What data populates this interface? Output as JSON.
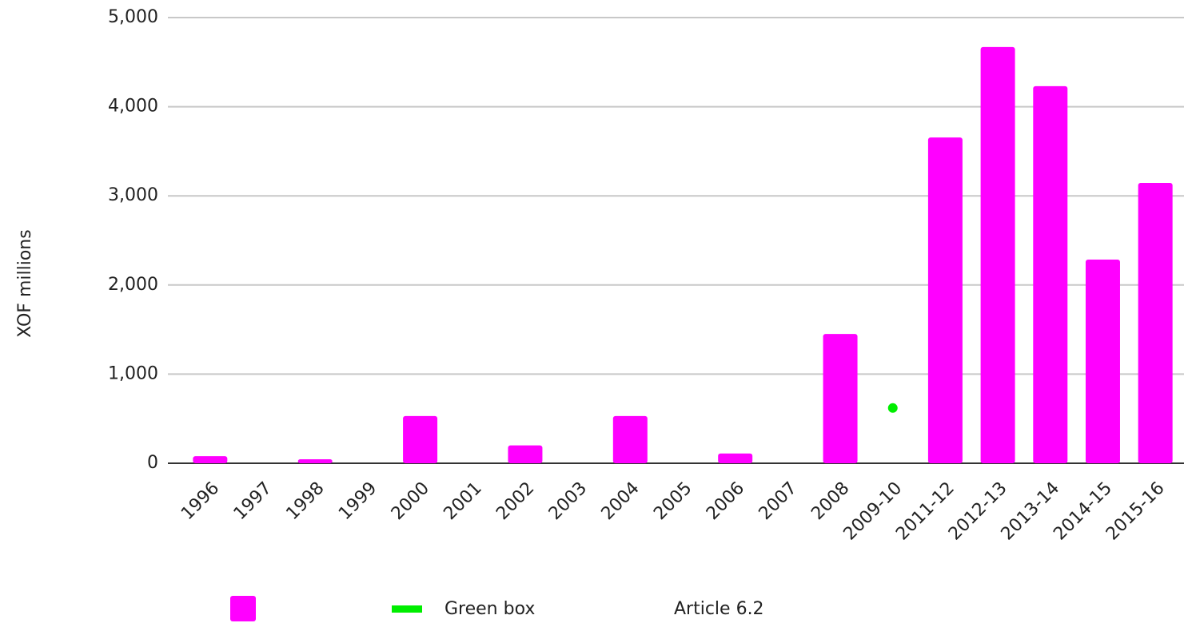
{
  "chart_data": {
    "type": "bar",
    "y_label": "XOF millions",
    "categories": [
      "1996",
      "1997",
      "1998",
      "1999",
      "2000",
      "2001",
      "2002",
      "2003",
      "2004",
      "2005",
      "2006",
      "2007",
      "2008",
      "2009-10",
      "2011-12",
      "2012-13",
      "2013-14",
      "2014-15",
      "2015-16"
    ],
    "series": [
      {
        "name": "Green box",
        "type": "line",
        "color": "#00ee00",
        "values": [
          null,
          null,
          null,
          null,
          null,
          null,
          null,
          null,
          null,
          null,
          null,
          null,
          null,
          620,
          null,
          null,
          null,
          null,
          null
        ]
      },
      {
        "name": "Article 6.2",
        "type": "bar",
        "color": "#ff00ff",
        "values": [
          80,
          null,
          45,
          null,
          530,
          null,
          200,
          null,
          530,
          null,
          110,
          null,
          1450,
          null,
          3655,
          4670,
          4230,
          2285,
          3145
        ]
      }
    ],
    "ylim": [
      0,
      5000
    ],
    "yticks": [
      0,
      {
        "value": 1000,
        "label": "1,000"
      },
      {
        "value": 2000,
        "label": "2,000"
      },
      {
        "value": 3000,
        "label": "3,000"
      },
      {
        "value": 4000,
        "label": "4,000"
      },
      {
        "value": 5000,
        "label": "5,000"
      }
    ],
    "grid": true,
    "legend": "bottom"
  }
}
